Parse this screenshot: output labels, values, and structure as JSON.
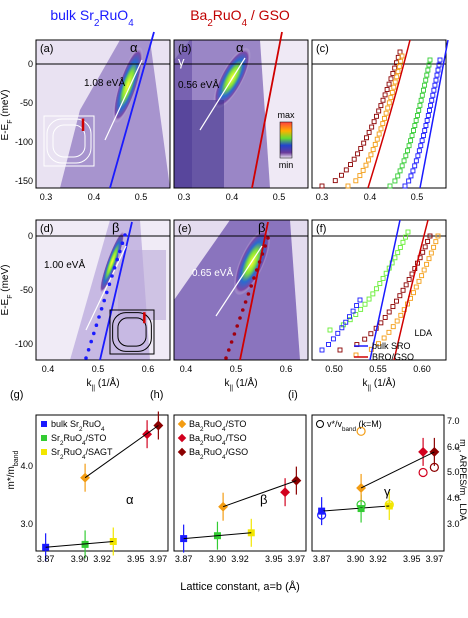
{
  "titles": {
    "bulk": "bulk Sr",
    "bulk_sub": "2",
    "bulk_end": "RuO",
    "bulk_sub2": "4",
    "film": "Ba",
    "film_sub": "2",
    "film_mid": "RuO",
    "film_sub2": "4",
    "film_end": " / GSO"
  },
  "panels": {
    "a": {
      "letter": "(a)",
      "band": "α",
      "velocity": "1.08 eVÅ"
    },
    "b": {
      "letter": "(b)",
      "band": "α",
      "band2": "γ",
      "velocity": "0.56 eVÅ"
    },
    "c": {
      "letter": "(c)"
    },
    "d": {
      "letter": "(d)",
      "band": "β",
      "velocity": "1.00 eVÅ"
    },
    "e": {
      "letter": "(e)",
      "band": "β",
      "velocity": "0.65 eVÅ"
    },
    "f": {
      "letter": "(f)"
    },
    "g": {
      "letter": "(g)",
      "band": "α"
    },
    "h": {
      "letter": "(h)",
      "band": "β"
    },
    "i": {
      "letter": "(i)",
      "band": "γ"
    }
  },
  "colorbar": {
    "max": "max",
    "min": "min"
  },
  "axes": {
    "energy_label": "E-E",
    "energy_label_sub": "F",
    "energy_label_end": " (meV)",
    "k_label": "k",
    "k_label_sub": "||",
    "k_label_end": " (1/Å)",
    "mass_label": "m*/m",
    "mass_label_sub": "band",
    "right_label": "m",
    "right_label_sub": "γ",
    "right_label_mid": ", ARPES",
    "right_label_end": "/m",
    "right_label_sub2": "γ",
    "right_label_fin": ", LDA",
    "lattice_label": "Lattice constant, a=b (Å)",
    "top_energy_ticks": [
      "0",
      "-50",
      "-100",
      "-150"
    ],
    "mid_energy_ticks": [
      "0",
      "-50",
      "-100"
    ],
    "k_ticks_a": [
      "0.3",
      "0.4",
      "0.5"
    ],
    "k_ticks_c": [
      "0.3",
      "0.4",
      "0.5"
    ],
    "k_ticks_d": [
      "0.4",
      "0.5",
      "0.6"
    ],
    "k_ticks_f": [
      "0.50",
      "0.55",
      "0.60"
    ],
    "mass_ticks": [
      "4.0",
      "3.0"
    ],
    "right_ticks": [
      "7.0",
      "6.0",
      "5.0",
      "4.0",
      "3.0"
    ],
    "lattice_ticks": [
      "3.87",
      "3.90",
      "3.92",
      "3.95",
      "3.97"
    ]
  },
  "legend_f": {
    "title": "LDA",
    "items": [
      "bulk SRO",
      "BRO/GSO"
    ]
  },
  "legend_g": [
    {
      "name": "bulk Sr",
      "sub": "2",
      "end": "RuO",
      "sub2": "4",
      "color": "#1a1aff"
    },
    {
      "name": "Sr",
      "sub": "2",
      "end": "RuO",
      "sub2": "4",
      "tail": "/STO",
      "color": "#33cc33"
    },
    {
      "name": "Sr",
      "sub": "2",
      "end": "RuO",
      "sub2": "4",
      "tail": "/SAGT",
      "color": "#f2e600"
    }
  ],
  "legend_h": [
    {
      "name": "Ba",
      "sub": "2",
      "end": "RuO",
      "sub2": "4",
      "tail": "/STO",
      "color": "#f39c12"
    },
    {
      "name": "Ba",
      "sub": "2",
      "end": "RuO",
      "sub2": "4",
      "tail": "/TSO",
      "color": "#d2001e"
    },
    {
      "name": "Ba",
      "sub": "2",
      "end": "RuO",
      "sub2": "4",
      "tail": "/GSO",
      "color": "#8b0000"
    }
  ],
  "legend_i": {
    "text": "v*/v",
    "sub": "band",
    "tail": " (k=M)"
  },
  "chart_data": [
    {
      "type": "scatter",
      "panel": "g",
      "xlabel": "Lattice constant, a=b (Å)",
      "ylabel": "m*/m_band",
      "series": [
        {
          "name": "bulk Sr2RuO4",
          "x": [
            3.87
          ],
          "values": [
            2.65
          ],
          "color": "#1a1aff"
        },
        {
          "name": "Sr2RuO4/STO",
          "x": [
            3.905
          ],
          "values": [
            2.7
          ],
          "color": "#33cc33"
        },
        {
          "name": "Sr2RuO4/SAGT",
          "x": [
            3.93
          ],
          "values": [
            2.75
          ],
          "color": "#f2e600"
        },
        {
          "name": "Ba2RuO4/STO",
          "x": [
            3.905
          ],
          "values": [
            3.85
          ],
          "color": "#f39c12"
        },
        {
          "name": "Ba2RuO4/TSO",
          "x": [
            3.96
          ],
          "values": [
            4.6
          ],
          "color": "#d2001e"
        },
        {
          "name": "Ba2RuO4/GSO",
          "x": [
            3.97
          ],
          "values": [
            4.75
          ],
          "color": "#8b0000"
        }
      ]
    },
    {
      "type": "scatter",
      "panel": "h",
      "series": [
        {
          "name": "bulk Sr2RuO4",
          "x": [
            3.87
          ],
          "values": [
            2.8
          ],
          "color": "#1a1aff"
        },
        {
          "name": "Sr2RuO4/STO",
          "x": [
            3.9
          ],
          "values": [
            2.85
          ],
          "color": "#33cc33"
        },
        {
          "name": "Sr2RuO4/SAGT",
          "x": [
            3.93
          ],
          "values": [
            2.9
          ],
          "color": "#f2e600"
        },
        {
          "name": "Ba2RuO4/STO",
          "x": [
            3.905
          ],
          "values": [
            3.35
          ],
          "color": "#f39c12"
        },
        {
          "name": "Ba2RuO4/TSO",
          "x": [
            3.96
          ],
          "values": [
            3.6
          ],
          "color": "#d2001e"
        },
        {
          "name": "Ba2RuO4/GSO",
          "x": [
            3.97
          ],
          "values": [
            3.8
          ],
          "color": "#8b0000"
        }
      ]
    },
    {
      "type": "scatter",
      "panel": "i",
      "series": [
        {
          "name": "bulk Sr2RuO4",
          "x": [
            3.87
          ],
          "values": [
            3.5
          ],
          "color": "#1a1aff"
        },
        {
          "name": "Sr2RuO4/STO",
          "x": [
            3.905
          ],
          "values": [
            3.6
          ],
          "color": "#33cc33"
        },
        {
          "name": "Sr2RuO4/SAGT",
          "x": [
            3.93
          ],
          "values": [
            3.7
          ],
          "color": "#f2e600"
        },
        {
          "name": "Ba2RuO4/STO",
          "x": [
            3.905
          ],
          "values": [
            4.4
          ],
          "color": "#f39c12"
        },
        {
          "name": "Ba2RuO4/TSO",
          "x": [
            3.96
          ],
          "values": [
            5.8
          ],
          "color": "#d2001e"
        },
        {
          "name": "Ba2RuO4/GSO",
          "x": [
            3.97
          ],
          "values": [
            5.8
          ],
          "color": "#8b0000"
        }
      ]
    }
  ]
}
